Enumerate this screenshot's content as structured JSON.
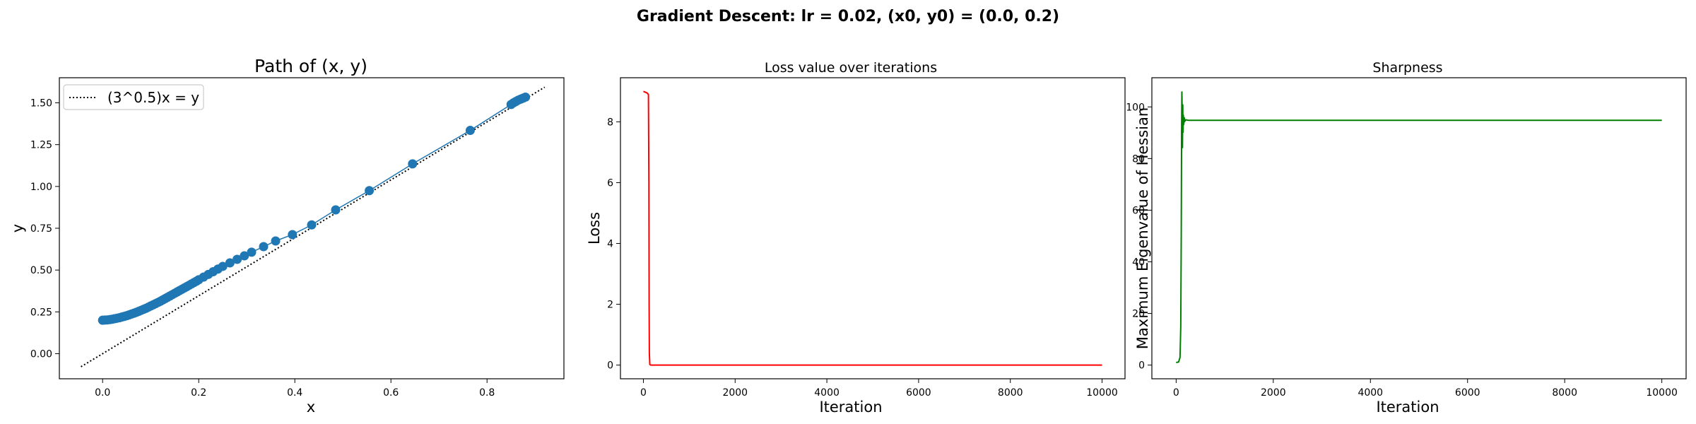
{
  "figure": {
    "suptitle": "Gradient Descent: lr = 0.02, (x0, y0) = (0.0, 0.2)"
  },
  "chart_data": [
    {
      "type": "scatter",
      "title": "Path of (x, y)",
      "xlabel": "x",
      "ylabel": "y",
      "xlim": [
        -0.09,
        0.96
      ],
      "ylim": [
        -0.15,
        1.65
      ],
      "xticks": [
        "0.0",
        "0.2",
        "0.4",
        "0.6",
        "0.8"
      ],
      "xtick_values": [
        0.0,
        0.2,
        0.4,
        0.6,
        0.8
      ],
      "yticks": [
        "0.00",
        "0.25",
        "0.50",
        "0.75",
        "1.00",
        "1.25",
        "1.50"
      ],
      "ytick_values": [
        0.0,
        0.25,
        0.5,
        0.75,
        1.0,
        1.25,
        1.5
      ],
      "legend": {
        "position": "top-left",
        "label": "(3^0.5)x = y"
      },
      "reference_line": {
        "slope": 1.732,
        "x": [
          -0.045,
          0.92
        ],
        "style": "dotted",
        "color": "#000000"
      },
      "series": [
        {
          "color": "#1f77b4",
          "x": [
            0.0,
            0.005,
            0.01,
            0.015,
            0.02,
            0.025,
            0.03,
            0.035,
            0.04,
            0.045,
            0.05,
            0.055,
            0.06,
            0.065,
            0.07,
            0.075,
            0.08,
            0.085,
            0.09,
            0.095,
            0.1,
            0.105,
            0.11,
            0.115,
            0.12,
            0.125,
            0.13,
            0.135,
            0.14,
            0.145,
            0.15,
            0.155,
            0.16,
            0.165,
            0.17,
            0.175,
            0.18,
            0.185,
            0.19,
            0.195,
            0.2,
            0.21,
            0.22,
            0.23,
            0.24,
            0.25,
            0.265,
            0.28,
            0.295,
            0.31,
            0.335,
            0.36,
            0.395,
            0.435,
            0.485,
            0.555,
            0.645,
            0.765,
            0.85,
            0.855,
            0.86,
            0.865,
            0.87,
            0.875,
            0.88
          ],
          "y": [
            0.2,
            0.201,
            0.202,
            0.204,
            0.206,
            0.209,
            0.212,
            0.215,
            0.219,
            0.223,
            0.227,
            0.232,
            0.237,
            0.242,
            0.247,
            0.253,
            0.259,
            0.265,
            0.271,
            0.278,
            0.285,
            0.292,
            0.299,
            0.306,
            0.313,
            0.321,
            0.329,
            0.337,
            0.345,
            0.353,
            0.361,
            0.369,
            0.377,
            0.385,
            0.393,
            0.401,
            0.409,
            0.417,
            0.425,
            0.433,
            0.442,
            0.458,
            0.474,
            0.49,
            0.506,
            0.522,
            0.543,
            0.564,
            0.585,
            0.607,
            0.64,
            0.674,
            0.712,
            0.77,
            0.86,
            0.975,
            1.135,
            1.335,
            1.49,
            1.5,
            1.508,
            1.516,
            1.522,
            1.528,
            1.534
          ]
        }
      ]
    },
    {
      "type": "line",
      "title": "Loss value over iterations",
      "xlabel": "Iteration",
      "ylabel": "Loss",
      "xlim": [
        -500,
        10500
      ],
      "ylim": [
        -0.45,
        9.45
      ],
      "xticks": [
        "0",
        "2000",
        "4000",
        "6000",
        "8000",
        "10000"
      ],
      "xtick_values": [
        0,
        2000,
        4000,
        6000,
        8000,
        10000
      ],
      "yticks": [
        "0",
        "2",
        "4",
        "6",
        "8"
      ],
      "ytick_values": [
        0,
        2,
        4,
        6,
        8
      ],
      "series": [
        {
          "color": "#ff0000",
          "x": [
            0,
            80,
            110,
            120,
            125,
            130,
            140,
            160,
            10000
          ],
          "y": [
            9.0,
            8.95,
            8.9,
            6.0,
            2.0,
            0.4,
            0.02,
            0.0,
            0.0
          ]
        }
      ]
    },
    {
      "type": "line",
      "title": "Sharpness",
      "xlabel": "Iteration",
      "ylabel": "Maximum Eigenvalue of Hessian",
      "xlim": [
        -500,
        10500
      ],
      "ylim": [
        -5.3,
        111.3
      ],
      "xticks": [
        "0",
        "2000",
        "4000",
        "6000",
        "8000",
        "10000"
      ],
      "xtick_values": [
        0,
        2000,
        4000,
        6000,
        8000,
        10000
      ],
      "yticks": [
        "0",
        "20",
        "40",
        "60",
        "80",
        "100"
      ],
      "ytick_values": [
        0,
        20,
        40,
        60,
        80,
        100
      ],
      "series": [
        {
          "color": "#008000",
          "x": [
            0,
            50,
            80,
            95,
            105,
            112,
            118,
            124,
            130,
            136,
            142,
            148,
            155,
            165,
            180,
            200,
            250,
            10000
          ],
          "y": [
            1.0,
            1.2,
            3.0,
            15.0,
            50.0,
            90.0,
            106.0,
            98.0,
            84.0,
            101.0,
            90.0,
            97.0,
            93.0,
            96.0,
            94.5,
            95.0,
            94.8,
            94.8
          ]
        }
      ]
    }
  ]
}
